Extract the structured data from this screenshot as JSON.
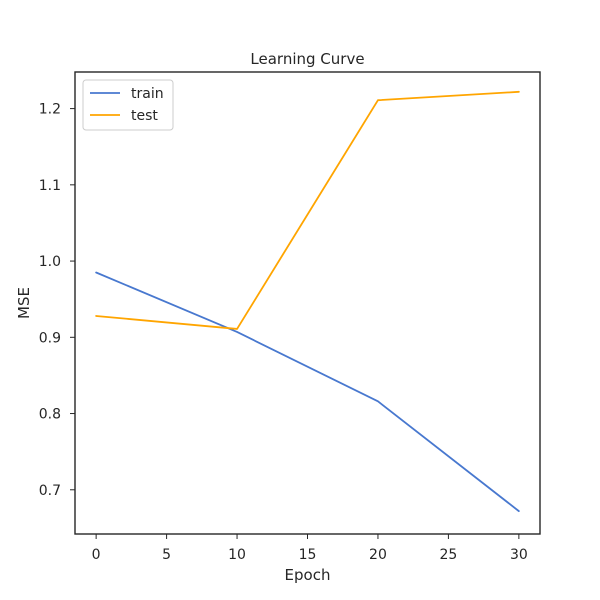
{
  "chart_data": {
    "type": "line",
    "title": "Learning Curve",
    "xlabel": "Epoch",
    "ylabel": "MSE",
    "xlim": [
      -1.5,
      31.5
    ],
    "ylim": [
      0.642,
      1.248
    ],
    "xticks": [
      0,
      5,
      10,
      15,
      20,
      25,
      30
    ],
    "xtick_labels": [
      "0",
      "5",
      "10",
      "15",
      "20",
      "25",
      "30"
    ],
    "yticks": [
      0.7,
      0.8,
      0.9,
      1.0,
      1.1,
      1.2
    ],
    "ytick_labels": [
      "0.7",
      "0.8",
      "0.9",
      "1.0",
      "1.1",
      "1.2"
    ],
    "grid": false,
    "legend_position": "top-left",
    "series": [
      {
        "name": "train",
        "color": "#4878cf",
        "x": [
          0,
          10,
          20,
          30
        ],
        "y": [
          0.985,
          0.907,
          0.816,
          0.672
        ]
      },
      {
        "name": "test",
        "color": "#ffa500",
        "x": [
          0,
          10,
          20,
          30
        ],
        "y": [
          0.928,
          0.911,
          1.211,
          1.222
        ]
      }
    ]
  }
}
